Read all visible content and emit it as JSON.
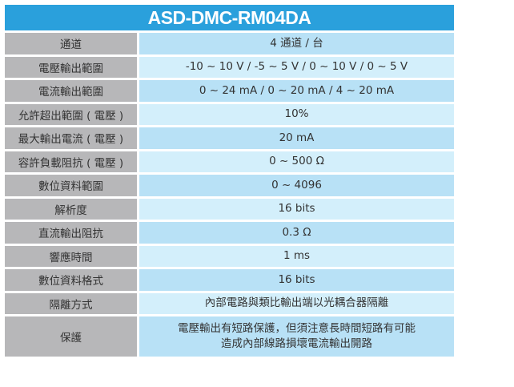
{
  "title": "ASD-DMC-RM04DA",
  "colors": {
    "header": "#2aa0dc",
    "label_bg": "#b7b7b9",
    "value_bg_a": "#d3effb",
    "value_bg_b": "#b8e1f6"
  },
  "rows": [
    {
      "label": "通道",
      "value": "4 通道 / 台"
    },
    {
      "label": "電壓輸出範圍",
      "value": "-10 ~ 10 V / -5 ~ 5 V / 0 ~ 10 V / 0 ~ 5 V"
    },
    {
      "label": "電流輸出範圍",
      "value": "0 ~ 24 mA / 0 ~ 20 mA / 4 ~ 20 mA"
    },
    {
      "label": "允許超出範圍 ( 電壓 )",
      "value": "10%"
    },
    {
      "label": "最大輸出電流 ( 電壓 )",
      "value": "20 mA"
    },
    {
      "label": "容許負載阻抗 ( 電壓 )",
      "value": "0 ~ 500 Ω"
    },
    {
      "label": "數位資料範圍",
      "value": "0 ~ 4096"
    },
    {
      "label": "解析度",
      "value": "16 bits"
    },
    {
      "label": "直流輸出阻抗",
      "value": "0.3 Ω"
    },
    {
      "label": "響應時間",
      "value": "1 ms"
    },
    {
      "label": "數位資料格式",
      "value": "16 bits"
    },
    {
      "label": "隔離方式",
      "value": "內部電路與類比輸出端以光耦合器隔離"
    },
    {
      "label": "保護",
      "value_line1": "電壓輸出有短路保護，但須注意長時間短路有可能",
      "value_line2": "造成內部線路損壞電流輸出開路"
    }
  ]
}
